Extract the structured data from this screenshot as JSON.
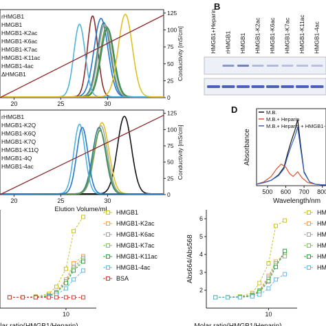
{
  "panel_labels": {
    "b": "B",
    "d": "D"
  },
  "chart_data": [
    {
      "id": "chrom_top",
      "type": "line",
      "xlabel": "",
      "ylabel_right": "Conductivity [mS/cm]",
      "xticks": [
        20,
        25,
        30
      ],
      "yticks_right": [
        0,
        25,
        50,
        75,
        100,
        125
      ],
      "xlim": [
        18.5,
        36
      ],
      "ylim_right": [
        0,
        130
      ],
      "legend": [
        "rHMGB1",
        "HMGB1",
        "HMGB1-K2ac",
        "HMGB1-K6ac",
        "HMGB1-K7ac",
        "HMGB1-K11ac",
        "HMGB1-4ac",
        "ΔHMGB1"
      ],
      "series": [
        {
          "name": "rHMGB1",
          "color": "#8b2a2a",
          "peak": 28.4,
          "width": 0.55,
          "height": 0.98
        },
        {
          "name": "HMGB1",
          "color": "#1f77d4",
          "peak": 29.3,
          "width": 0.75,
          "height": 0.95
        },
        {
          "name": "HMGB1-K2ac",
          "color": "#2f7f8a",
          "peak": 29.6,
          "width": 0.7,
          "height": 0.9
        },
        {
          "name": "HMGB1-K6ac",
          "color": "#9a9a9a",
          "peak": 29.7,
          "width": 0.7,
          "height": 0.88
        },
        {
          "name": "HMGB1-K7ac",
          "color": "#5a9a4a",
          "peak": 29.9,
          "width": 0.7,
          "height": 0.85
        },
        {
          "name": "HMGB1-K11ac",
          "color": "#3a8a5a",
          "peak": 30.0,
          "width": 0.7,
          "height": 0.83
        },
        {
          "name": "HMGB1-4ac",
          "color": "#4fb3d9",
          "peak": 27.0,
          "width": 0.6,
          "height": 0.88
        },
        {
          "name": "ΔHMGB1",
          "color": "#e0c020",
          "peak": 31.9,
          "width": 0.75,
          "height": 1.0
        }
      ],
      "conductivity_line": {
        "x": [
          18.5,
          36
        ],
        "y": [
          0,
          122
        ],
        "color": "#8b2a2a"
      }
    },
    {
      "id": "chrom_bottom",
      "type": "line",
      "xlabel": "Elution Volume/mL",
      "ylabel_right": "Conductivity [mS/cm]",
      "xticks": [
        20,
        25,
        30
      ],
      "yticks_right": [
        0,
        25,
        50,
        75,
        100,
        125
      ],
      "xlim": [
        18.5,
        36
      ],
      "ylim_right": [
        0,
        130
      ],
      "legend": [
        "rHMGB1",
        "HMGB1-K2Q",
        "HMGB1-K6Q",
        "HMGB1-K7Q",
        "HMGB1-K11Q",
        "HMGB1-4Q",
        "HMGB1-4ac"
      ],
      "series": [
        {
          "name": "rHMGB1",
          "color": "#111111",
          "peak": 31.8,
          "width": 0.75,
          "height": 0.98
        },
        {
          "name": "HMGB1-K2Q",
          "color": "#e0c020",
          "peak": 29.4,
          "width": 0.75,
          "height": 0.9
        },
        {
          "name": "HMGB1-K6Q",
          "color": "#aaaaaa",
          "peak": 29.3,
          "width": 0.7,
          "height": 0.86
        },
        {
          "name": "HMGB1-K7Q",
          "color": "#2f7f8a",
          "peak": 29.1,
          "width": 0.7,
          "height": 0.84
        },
        {
          "name": "HMGB1-K11Q",
          "color": "#5a9a4a",
          "peak": 29.2,
          "width": 0.7,
          "height": 0.8
        },
        {
          "name": "HMGB1-4Q",
          "color": "#4fb3d9",
          "peak": 27.0,
          "width": 0.6,
          "height": 0.88
        },
        {
          "name": "HMGB1-4ac",
          "color": "#1f77d4",
          "peak": 27.3,
          "width": 0.6,
          "height": 0.84
        }
      ],
      "conductivity_line": {
        "x": [
          18.5,
          36
        ],
        "y": [
          0,
          122
        ],
        "color": "#8b2a2a"
      }
    },
    {
      "id": "absorbance",
      "type": "line",
      "xlabel": "Wavelength/nm",
      "ylabel": "Absorbance",
      "xticks": [
        500,
        600,
        700,
        800
      ],
      "xlim": [
        440,
        820
      ],
      "ylim": [
        0,
        1
      ],
      "legend": [
        "M.B.",
        "M.B.+ Heparin",
        "M.B.+ Heparin + HMGB1-"
      ],
      "series": [
        {
          "name": "M.B.",
          "color": "#111111",
          "x": [
            440,
            480,
            520,
            560,
            590,
            610,
            630,
            650,
            665,
            680,
            700,
            730,
            760,
            800,
            820
          ],
          "y": [
            0.02,
            0.04,
            0.07,
            0.14,
            0.24,
            0.42,
            0.58,
            0.72,
            0.86,
            0.55,
            0.18,
            0.05,
            0.02,
            0.01,
            0.01
          ]
        },
        {
          "name": "M.B.+ Heparin",
          "color": "#e05030",
          "x": [
            440,
            480,
            520,
            550,
            575,
            600,
            620,
            640,
            665,
            690,
            720,
            760,
            800,
            820
          ],
          "y": [
            0.02,
            0.05,
            0.12,
            0.22,
            0.28,
            0.24,
            0.16,
            0.12,
            0.18,
            0.1,
            0.04,
            0.02,
            0.01,
            0.01
          ]
        },
        {
          "name": "M.B.+ Heparin + HMGB1-",
          "color": "#3060c0",
          "x": [
            440,
            480,
            520,
            560,
            590,
            610,
            630,
            650,
            665,
            680,
            700,
            730,
            760,
            800,
            820
          ],
          "y": [
            0.02,
            0.04,
            0.07,
            0.13,
            0.22,
            0.38,
            0.52,
            0.64,
            0.76,
            0.5,
            0.17,
            0.05,
            0.02,
            0.01,
            0.01
          ]
        }
      ]
    },
    {
      "id": "ratio_left",
      "type": "line",
      "xlabel": "Molar ratio(HMGB1/Heparin)",
      "ylabel": "",
      "xscale": "log",
      "xticks": [
        10
      ],
      "xlim": [
        0.3,
        50
      ],
      "ylim": [
        1.0,
        6.5
      ],
      "legend": [
        "HMGB1",
        "HMGB1-K2ac",
        "HMGB1-K6ac",
        "HMGB1-K7ac",
        "HMGB1-K11ac",
        "HMGB1-4ac",
        "BSA"
      ],
      "x": [
        0.5,
        1,
        2,
        4,
        6,
        10,
        15,
        25
      ],
      "series": [
        {
          "name": "HMGB1",
          "color": "#c8c020",
          "values": [
            1.6,
            1.6,
            1.65,
            1.8,
            2.2,
            3.2,
            5.3,
            6.1
          ]
        },
        {
          "name": "HMGB1-K2ac",
          "color": "#f0a050",
          "values": [
            1.6,
            1.6,
            1.62,
            1.7,
            1.9,
            2.6,
            3.5,
            3.9
          ]
        },
        {
          "name": "HMGB1-K6ac",
          "color": "#a0a0a0",
          "values": [
            1.6,
            1.6,
            1.62,
            1.7,
            1.9,
            2.5,
            3.3,
            3.8
          ]
        },
        {
          "name": "HMGB1-K7ac",
          "color": "#80c060",
          "values": [
            1.6,
            1.6,
            1.62,
            1.7,
            1.85,
            2.4,
            3.2,
            3.7
          ]
        },
        {
          "name": "HMGB1-K11ac",
          "color": "#30a040",
          "values": [
            1.6,
            1.6,
            1.62,
            1.7,
            1.85,
            2.4,
            3.1,
            3.6
          ]
        },
        {
          "name": "HMGB1-4ac",
          "color": "#60b8e0",
          "values": [
            1.6,
            1.6,
            1.6,
            1.65,
            1.75,
            2.1,
            2.6,
            3.1
          ]
        },
        {
          "name": "BSA",
          "color": "#d04030",
          "values": [
            1.6,
            1.6,
            1.6,
            1.6,
            1.6,
            1.6,
            1.6,
            1.6
          ]
        }
      ]
    },
    {
      "id": "ratio_right",
      "type": "line",
      "xlabel": "Molar ratio(HMGB1/Heparin)",
      "ylabel": "Abs664/Abs568",
      "xscale": "log",
      "xticks": [
        10
      ],
      "xlim": [
        0.3,
        50
      ],
      "ylim": [
        1.0,
        6.5
      ],
      "yticks": [
        2,
        3,
        4,
        5,
        6
      ],
      "legend": [
        "HM",
        "HM",
        "HM",
        "HM",
        "HM",
        "HM"
      ],
      "x": [
        0.5,
        1,
        2,
        4,
        6,
        10,
        15,
        25
      ],
      "series": [
        {
          "name": "HM",
          "color": "#c8c020",
          "values": [
            1.6,
            1.62,
            1.65,
            1.85,
            2.4,
            3.5,
            5.6,
            5.9
          ]
        },
        {
          "name": "HM",
          "color": "#f0a050",
          "values": [
            1.6,
            1.6,
            1.62,
            1.75,
            2.0,
            2.8,
            3.6,
            4.0
          ]
        },
        {
          "name": "HM",
          "color": "#a0a0a0",
          "values": [
            1.6,
            1.6,
            1.62,
            1.72,
            1.95,
            2.7,
            3.5,
            3.9
          ]
        },
        {
          "name": "HM",
          "color": "#80c060",
          "values": [
            1.6,
            1.6,
            1.62,
            1.72,
            1.95,
            2.6,
            3.4,
            4.1
          ]
        },
        {
          "name": "HM",
          "color": "#30a040",
          "values": [
            1.6,
            1.6,
            1.62,
            1.7,
            1.9,
            2.5,
            3.3,
            4.2
          ]
        },
        {
          "name": "HM",
          "color": "#60b8e0",
          "values": [
            1.6,
            1.6,
            1.6,
            1.65,
            1.75,
            2.1,
            2.6,
            2.9
          ]
        }
      ]
    }
  ],
  "gel": {
    "lanes": [
      "HMGB1+Heparin",
      "rHMGB1",
      "HMGB1",
      "HMGB1-K2ac",
      "HMGB1-K6ac",
      "HMGB1-K7ac",
      "HMGB1-K11ac",
      "HMGB1-4ac"
    ],
    "top_band_intensity": [
      0.0,
      0.55,
      0.7,
      0.35,
      0.35,
      0.3,
      0.3,
      0.3
    ],
    "bottom_band_intensity": [
      0.9,
      0.9,
      0.9,
      0.9,
      0.9,
      0.9,
      0.9,
      0.9
    ],
    "band_color": "#3a4fb0"
  }
}
